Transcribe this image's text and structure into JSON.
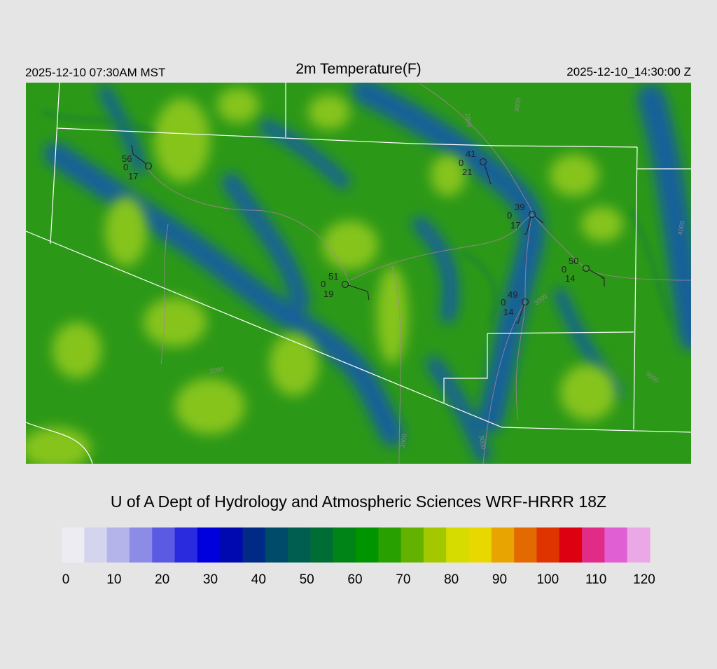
{
  "header": {
    "local_time": "2025-12-10 07:30AM MST",
    "title": "2m Temperature(F)",
    "utc_time": "2025-12-10_14:30:00 Z"
  },
  "stations": [
    {
      "temperature": 56,
      "middle": 0,
      "dewpoint": 17
    },
    {
      "temperature": 41,
      "middle": 0,
      "dewpoint": 21
    },
    {
      "temperature": 39,
      "middle": 0,
      "dewpoint": 17
    },
    {
      "temperature": 50,
      "middle": 0,
      "dewpoint": 14
    },
    {
      "temperature": 49,
      "middle": 0,
      "dewpoint": 14
    },
    {
      "temperature": 51,
      "middle": 0,
      "dewpoint": 19
    }
  ],
  "contour_labels": [
    2000,
    3000,
    4000,
    3000,
    2000,
    5000,
    3000,
    3000
  ],
  "credit": "U of A Dept of Hydrology and Atmospheric Sciences WRF-HRRR 18Z",
  "colorbar": {
    "ticks": [
      0,
      10,
      20,
      30,
      40,
      50,
      60,
      70,
      80,
      90,
      100,
      110,
      120
    ],
    "colors": [
      "#ececf2",
      "#d4d4ee",
      "#b4b4ea",
      "#8c8ce6",
      "#5a5ae2",
      "#2a2ade",
      "#0000dc",
      "#0008b0",
      "#002a86",
      "#004a6a",
      "#005e50",
      "#006e34",
      "#008418",
      "#009400",
      "#28a000",
      "#64b200",
      "#a4c800",
      "#d6dc00",
      "#e8d800",
      "#e8a400",
      "#e26a00",
      "#e03400",
      "#dc0010",
      "#e02c86",
      "#e060d4",
      "#eaa8e6"
    ]
  }
}
